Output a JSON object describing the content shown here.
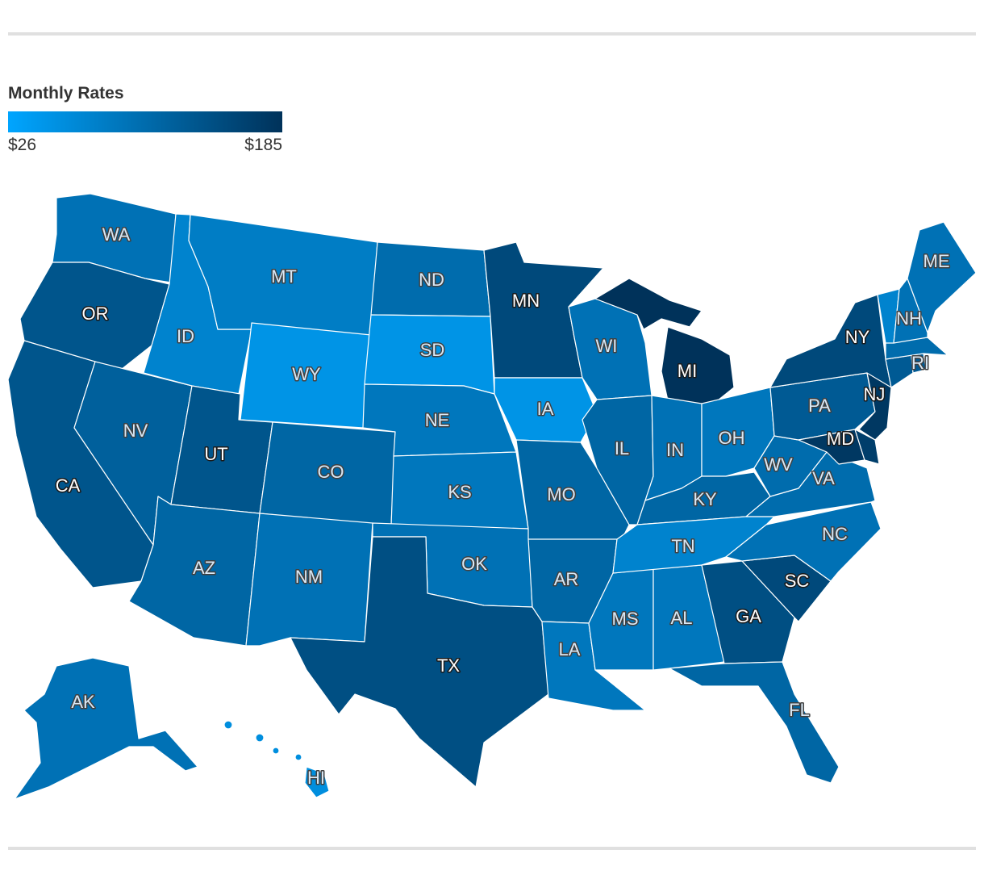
{
  "legend": {
    "title": "Monthly Rates",
    "min_label": "$26",
    "max_label": "$185",
    "min_value": 26,
    "max_value": 185,
    "color_low": "#00a5ff",
    "color_high": "#00325a"
  },
  "colors": {
    "background": "#ffffff",
    "rule": "#e0e0e0",
    "state_border": "#ffffff",
    "label_light_fill": "#d9e8f5",
    "label_light_stroke": "#404040",
    "label_dark_fill": "#ffffff",
    "label_dark_stroke": "#1a1a1a"
  },
  "chart_data": {
    "type": "choropleth",
    "geography": "United States",
    "states": [
      {
        "code": "WA",
        "label": "WA",
        "level": 0.45
      },
      {
        "code": "OR",
        "label": "OR",
        "level": 0.7
      },
      {
        "code": "CA",
        "label": "CA",
        "level": 0.7
      },
      {
        "code": "NV",
        "label": "NV",
        "level": 0.6
      },
      {
        "code": "ID",
        "label": "ID",
        "level": 0.3
      },
      {
        "code": "MT",
        "label": "MT",
        "level": 0.35
      },
      {
        "code": "WY",
        "label": "WY",
        "level": 0.15
      },
      {
        "code": "UT",
        "label": "UT",
        "level": 0.7
      },
      {
        "code": "AZ",
        "label": "AZ",
        "level": 0.55
      },
      {
        "code": "CO",
        "label": "CO",
        "level": 0.55
      },
      {
        "code": "NM",
        "label": "NM",
        "level": 0.45
      },
      {
        "code": "ND",
        "label": "ND",
        "level": 0.5
      },
      {
        "code": "SD",
        "label": "SD",
        "level": 0.15
      },
      {
        "code": "NE",
        "label": "NE",
        "level": 0.4
      },
      {
        "code": "KS",
        "label": "KS",
        "level": 0.4
      },
      {
        "code": "OK",
        "label": "OK",
        "level": 0.45
      },
      {
        "code": "TX",
        "label": "TX",
        "level": 0.75
      },
      {
        "code": "MN",
        "label": "MN",
        "level": 0.8
      },
      {
        "code": "IA",
        "label": "IA",
        "level": 0.15
      },
      {
        "code": "MO",
        "label": "MO",
        "level": 0.55
      },
      {
        "code": "AR",
        "label": "AR",
        "level": 0.55
      },
      {
        "code": "LA",
        "label": "LA",
        "level": 0.4
      },
      {
        "code": "WI",
        "label": "WI",
        "level": 0.45
      },
      {
        "code": "IL",
        "label": "IL",
        "level": 0.55
      },
      {
        "code": "MS",
        "label": "MS",
        "level": 0.4
      },
      {
        "code": "MI",
        "label": "MI",
        "level": 1.0
      },
      {
        "code": "IN",
        "label": "IN",
        "level": 0.45
      },
      {
        "code": "OH",
        "label": "OH",
        "level": 0.4
      },
      {
        "code": "KY",
        "label": "KY",
        "level": 0.55
      },
      {
        "code": "TN",
        "label": "TN",
        "level": 0.3
      },
      {
        "code": "AL",
        "label": "AL",
        "level": 0.4
      },
      {
        "code": "GA",
        "label": "GA",
        "level": 0.75
      },
      {
        "code": "FL",
        "label": "FL",
        "level": 0.55
      },
      {
        "code": "SC",
        "label": "SC",
        "level": 0.8
      },
      {
        "code": "NC",
        "label": "NC",
        "level": 0.45
      },
      {
        "code": "VA",
        "label": "VA",
        "level": 0.5
      },
      {
        "code": "WV",
        "label": "WV",
        "level": 0.5
      },
      {
        "code": "PA",
        "label": "PA",
        "level": 0.65
      },
      {
        "code": "NY",
        "label": "NY",
        "level": 0.8
      },
      {
        "code": "NJ",
        "label": "NJ",
        "level": 0.95
      },
      {
        "code": "MD",
        "label": "MD",
        "level": 0.95
      },
      {
        "code": "DE",
        "label": "",
        "level": 0.9
      },
      {
        "code": "CT",
        "label": "",
        "level": 0.65
      },
      {
        "code": "RI",
        "label": "RI",
        "level": 0.65
      },
      {
        "code": "MA",
        "label": "",
        "level": 0.5
      },
      {
        "code": "VT",
        "label": "",
        "level": 0.3
      },
      {
        "code": "NH",
        "label": "NH",
        "level": 0.45
      },
      {
        "code": "ME",
        "label": "ME",
        "level": 0.45
      },
      {
        "code": "AK",
        "label": "AK",
        "level": 0.45
      },
      {
        "code": "HI",
        "label": "HI",
        "level": 0.2
      }
    ]
  }
}
